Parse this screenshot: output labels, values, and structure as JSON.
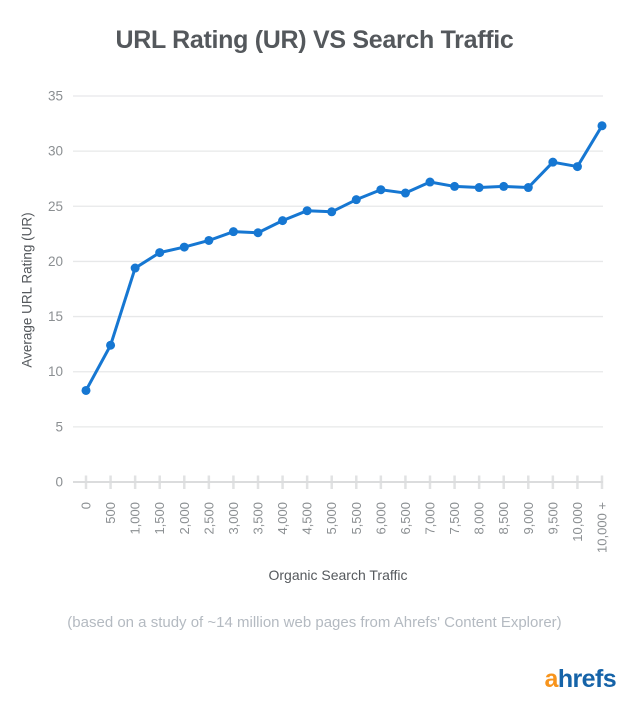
{
  "chart_data": {
    "type": "line",
    "title": "URL Rating (UR) VS Search Traffic",
    "xlabel": "Organic Search Traffic",
    "ylabel": "Average URL Rating (UR)",
    "categories": [
      "0",
      "500",
      "1,000",
      "1,500",
      "2,000",
      "2,500",
      "3,000",
      "3,500",
      "4,000",
      "4,500",
      "5,000",
      "5,500",
      "6,000",
      "6,500",
      "7,000",
      "7,500",
      "8,000",
      "8,500",
      "9,000",
      "9,500",
      "10,000",
      "10,000 +"
    ],
    "series": [
      {
        "name": "Average URL Rating (UR)",
        "values": [
          8.3,
          12.4,
          19.4,
          20.8,
          21.3,
          21.9,
          22.7,
          22.6,
          23.7,
          24.6,
          24.5,
          25.6,
          26.5,
          26.2,
          27.2,
          26.8,
          26.7,
          26.8,
          26.7,
          29,
          28.6,
          32.3
        ]
      }
    ],
    "yticks": [
      0,
      5,
      10,
      15,
      20,
      25,
      30,
      35
    ],
    "ylim": [
      0,
      35
    ],
    "grid": true,
    "legend": "none",
    "marker": "circle",
    "colors": {
      "line": "#1677d2",
      "grid": "#e7e8e9",
      "axis_line": "#dbdcdd",
      "tick": "#e1e2e3",
      "tick_label": "#8b8f92",
      "axis_title": "#55595d",
      "title": "#54585c",
      "caption": "#b4bac1"
    }
  },
  "caption": "(based on a study of ~14 million web pages from Ahrefs' Content Explorer)",
  "logo": {
    "a": "a",
    "hrefs": "hrefs",
    "a_color": "#f7941d",
    "hrefs_color": "#1563a8"
  }
}
